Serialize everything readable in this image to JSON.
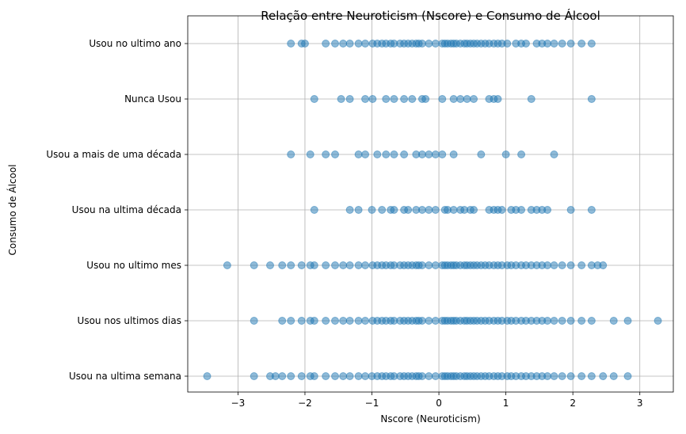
{
  "chart_data": {
    "type": "scatter",
    "title": "Relação entre Neuroticism (Nscore) e Consumo de Álcool",
    "xlabel": "Nscore (Neuroticism)",
    "ylabel": "Consumo de Álcool",
    "xlim": [
      -3.75,
      3.5
    ],
    "x_ticks": [
      -3,
      -2,
      -1,
      0,
      1,
      2,
      3
    ],
    "x_tick_labels": [
      "−3",
      "−2",
      "−1",
      "0",
      "1",
      "2",
      "3"
    ],
    "categories": [
      "Usou na ultima semana",
      "Usou nos ultimos dias",
      "Usou no ultimo mes",
      "Usou na ultima década",
      "Usou a mais de uma década",
      "Nunca Usou",
      "Usou no ultimo ano"
    ],
    "grid": true,
    "marker_color": "#1f77b4",
    "marker_alpha": 0.5,
    "series": [
      {
        "category": "Usou na ultima semana",
        "x": [
          -3.46,
          -2.76,
          -2.52,
          -2.44,
          -2.34,
          -2.21,
          -2.05,
          -1.92,
          -1.86,
          -1.69,
          -1.55,
          -1.43,
          -1.33,
          -1.2,
          -1.1,
          -1.0,
          -0.92,
          -0.85,
          -0.79,
          -0.72,
          -0.67,
          -0.58,
          -0.52,
          -0.46,
          -0.4,
          -0.34,
          -0.3,
          -0.25,
          -0.15,
          -0.05,
          0.05,
          0.09,
          0.13,
          0.18,
          0.22,
          0.26,
          0.32,
          0.38,
          0.42,
          0.47,
          0.52,
          0.57,
          0.63,
          0.69,
          0.75,
          0.82,
          0.88,
          0.94,
          1.02,
          1.08,
          1.15,
          1.23,
          1.3,
          1.38,
          1.46,
          1.54,
          1.62,
          1.72,
          1.84,
          1.97,
          2.13,
          2.28,
          2.45,
          2.61,
          2.82
        ]
      },
      {
        "category": "Usou nos ultimos dias",
        "x": [
          -2.76,
          -2.34,
          -2.21,
          -2.05,
          -1.92,
          -1.86,
          -1.69,
          -1.55,
          -1.43,
          -1.33,
          -1.2,
          -1.1,
          -0.99,
          -0.92,
          -0.85,
          -0.79,
          -0.72,
          -0.67,
          -0.58,
          -0.52,
          -0.46,
          -0.4,
          -0.34,
          -0.3,
          -0.25,
          -0.15,
          -0.05,
          0.05,
          0.09,
          0.13,
          0.18,
          0.22,
          0.26,
          0.32,
          0.38,
          0.42,
          0.47,
          0.52,
          0.57,
          0.63,
          0.69,
          0.75,
          0.82,
          0.88,
          0.94,
          1.02,
          1.08,
          1.15,
          1.23,
          1.3,
          1.38,
          1.46,
          1.54,
          1.62,
          1.72,
          1.84,
          1.97,
          2.13,
          2.28,
          2.61,
          2.82,
          3.27
        ]
      },
      {
        "category": "Usou no ultimo mes",
        "x": [
          -3.16,
          -2.76,
          -2.52,
          -2.34,
          -2.21,
          -2.05,
          -1.92,
          -1.86,
          -1.69,
          -1.55,
          -1.43,
          -1.33,
          -1.2,
          -1.1,
          -0.99,
          -0.92,
          -0.85,
          -0.79,
          -0.72,
          -0.67,
          -0.58,
          -0.52,
          -0.46,
          -0.4,
          -0.34,
          -0.3,
          -0.25,
          -0.15,
          -0.05,
          0.05,
          0.09,
          0.13,
          0.18,
          0.22,
          0.26,
          0.32,
          0.38,
          0.42,
          0.47,
          0.52,
          0.57,
          0.63,
          0.69,
          0.75,
          0.82,
          0.88,
          0.94,
          1.02,
          1.08,
          1.15,
          1.23,
          1.3,
          1.38,
          1.46,
          1.54,
          1.62,
          1.72,
          1.84,
          1.97,
          2.13,
          2.28,
          2.37,
          2.45
        ]
      },
      {
        "category": "Usou na ultima década",
        "x": [
          -1.86,
          -1.33,
          -1.2,
          -1.0,
          -0.85,
          -0.72,
          -0.67,
          -0.52,
          -0.46,
          -0.34,
          -0.25,
          -0.15,
          -0.05,
          0.09,
          0.13,
          0.22,
          0.32,
          0.38,
          0.47,
          0.52,
          0.75,
          0.82,
          0.88,
          0.94,
          1.08,
          1.15,
          1.23,
          1.38,
          1.46,
          1.54,
          1.62,
          1.97,
          2.28
        ]
      },
      {
        "category": "Usou a mais de uma década",
        "x": [
          -2.21,
          -1.92,
          -1.69,
          -1.55,
          -1.2,
          -1.1,
          -0.92,
          -0.79,
          -0.67,
          -0.52,
          -0.34,
          -0.25,
          -0.15,
          -0.05,
          0.05,
          0.22,
          0.63,
          1.0,
          1.23,
          1.72
        ]
      },
      {
        "category": "Nunca Usou",
        "x": [
          -1.86,
          -1.46,
          -1.33,
          -1.1,
          -0.99,
          -0.79,
          -0.67,
          -0.52,
          -0.4,
          -0.25,
          -0.2,
          0.05,
          0.22,
          0.32,
          0.42,
          0.52,
          0.75,
          0.82,
          0.88,
          1.38,
          2.28
        ]
      },
      {
        "category": "Usou no ultimo ano",
        "x": [
          -2.21,
          -2.05,
          -2.0,
          -1.69,
          -1.55,
          -1.43,
          -1.33,
          -1.2,
          -1.1,
          -0.99,
          -0.92,
          -0.85,
          -0.79,
          -0.72,
          -0.67,
          -0.58,
          -0.52,
          -0.46,
          -0.4,
          -0.34,
          -0.3,
          -0.25,
          -0.15,
          -0.05,
          0.05,
          0.09,
          0.13,
          0.18,
          0.22,
          0.26,
          0.32,
          0.38,
          0.42,
          0.47,
          0.52,
          0.57,
          0.63,
          0.69,
          0.75,
          0.82,
          0.88,
          0.94,
          1.02,
          1.15,
          1.23,
          1.3,
          1.46,
          1.54,
          1.62,
          1.72,
          1.84,
          1.97,
          2.13,
          2.28
        ]
      }
    ]
  }
}
